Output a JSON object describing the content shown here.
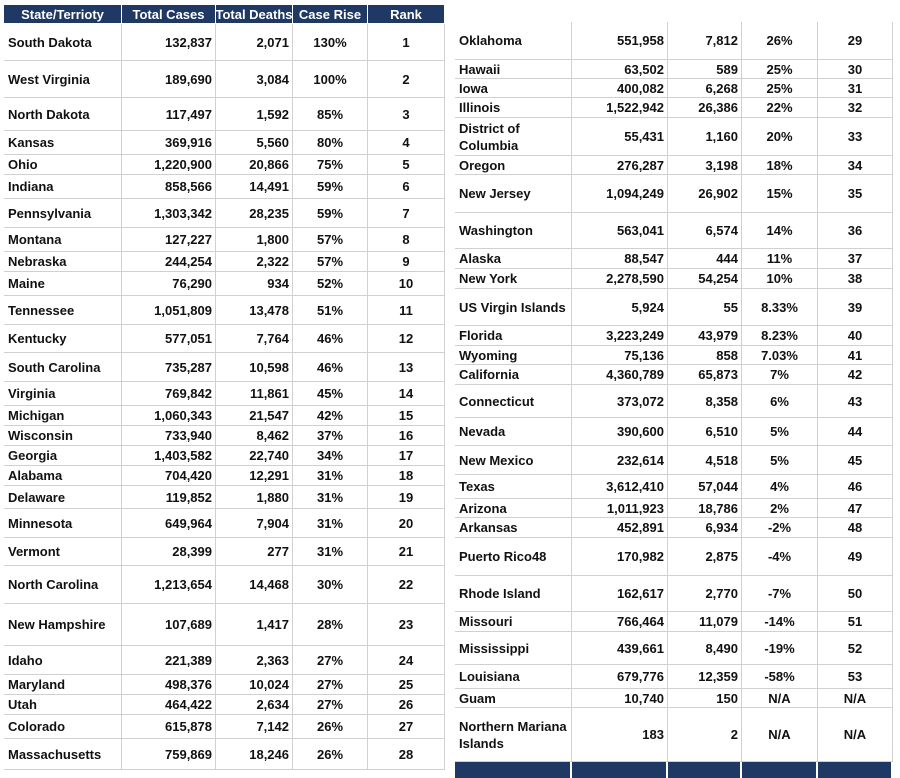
{
  "left_table": {
    "header": [
      "State/Terrioty",
      "Total Cases",
      "Total Deaths",
      "Case Rise",
      "Rank"
    ],
    "rows": [
      [
        "South Dakota",
        "132,837",
        "2,071",
        "130%",
        "1"
      ],
      [
        "West Virginia",
        "189,690",
        "3,084",
        "100%",
        "2"
      ],
      [
        "North Dakota",
        "117,497",
        "1,592",
        "85%",
        "3"
      ],
      [
        "Kansas",
        "369,916",
        "5,560",
        "80%",
        "4"
      ],
      [
        "Ohio",
        "1,220,900",
        "20,866",
        "75%",
        "5"
      ],
      [
        "Indiana",
        "858,566",
        "14,491",
        "59%",
        "6"
      ],
      [
        "Pennsylvania",
        "1,303,342",
        "28,235",
        "59%",
        "7"
      ],
      [
        "Montana",
        "127,227",
        "1,800",
        "57%",
        "8"
      ],
      [
        "Nebraska",
        "244,254",
        "2,322",
        "57%",
        "9"
      ],
      [
        "Maine",
        "76,290",
        "934",
        "52%",
        "10"
      ],
      [
        "Tennessee",
        "1,051,809",
        "13,478",
        "51%",
        "11"
      ],
      [
        "Kentucky",
        "577,051",
        "7,764",
        "46%",
        "12"
      ],
      [
        "South Carolina",
        "735,287",
        "10,598",
        "46%",
        "13"
      ],
      [
        "Virginia",
        "769,842",
        "11,861",
        "45%",
        "14"
      ],
      [
        "Michigan",
        "1,060,343",
        "21,547",
        "42%",
        "15"
      ],
      [
        "Wisconsin",
        "733,940",
        "8,462",
        "37%",
        "16"
      ],
      [
        "Georgia",
        "1,403,582",
        "22,740",
        "34%",
        "17"
      ],
      [
        "Alabama",
        "704,420",
        "12,291",
        "31%",
        "18"
      ],
      [
        "Delaware",
        "119,852",
        "1,880",
        "31%",
        "19"
      ],
      [
        "Minnesota",
        "649,964",
        "7,904",
        "31%",
        "20"
      ],
      [
        "Vermont",
        "28,399",
        "277",
        "31%",
        "21"
      ],
      [
        "North Carolina",
        "1,213,654",
        "14,468",
        "30%",
        "22"
      ],
      [
        "New Hampshire",
        "107,689",
        "1,417",
        "28%",
        "23"
      ],
      [
        "Idaho",
        "221,389",
        "2,363",
        "27%",
        "24"
      ],
      [
        "Maryland",
        "498,376",
        "10,024",
        "27%",
        "25"
      ],
      [
        "Utah",
        "464,422",
        "2,634",
        "27%",
        "26"
      ],
      [
        "Colorado",
        "615,878",
        "7,142",
        "26%",
        "27"
      ],
      [
        "Massachusetts",
        "759,869",
        "18,246",
        "26%",
        "28"
      ]
    ]
  },
  "right_table": {
    "rows": [
      [
        "Oklahoma",
        "551,958",
        "7,812",
        "26%",
        "29"
      ],
      [
        "Hawaii",
        "63,502",
        "589",
        "25%",
        "30"
      ],
      [
        "Iowa",
        "400,082",
        "6,268",
        "25%",
        "31"
      ],
      [
        "Illinois",
        "1,522,942",
        "26,386",
        "22%",
        "32"
      ],
      [
        "District of Columbia",
        "55,431",
        "1,160",
        "20%",
        "33"
      ],
      [
        "Oregon",
        "276,287",
        "3,198",
        "18%",
        "34"
      ],
      [
        "New Jersey",
        "1,094,249",
        "26,902",
        "15%",
        "35"
      ],
      [
        "Washington",
        "563,041",
        "6,574",
        "14%",
        "36"
      ],
      [
        "Alaska",
        "88,547",
        "444",
        "11%",
        "37"
      ],
      [
        "New York",
        "2,278,590",
        "54,254",
        "10%",
        "38"
      ],
      [
        "US Virgin Islands",
        "5,924",
        "55",
        "8.33%",
        "39"
      ],
      [
        "Florida",
        "3,223,249",
        "43,979",
        "8.23%",
        "40"
      ],
      [
        "Wyoming",
        "75,136",
        "858",
        "7.03%",
        "41"
      ],
      [
        "California",
        "4,360,789",
        "65,873",
        "7%",
        "42"
      ],
      [
        "Connecticut",
        "373,072",
        "8,358",
        "6%",
        "43"
      ],
      [
        "Nevada",
        "390,600",
        "6,510",
        "5%",
        "44"
      ],
      [
        "New Mexico",
        "232,614",
        "4,518",
        "5%",
        "45"
      ],
      [
        "Texas",
        "3,612,410",
        "57,044",
        "4%",
        "46"
      ],
      [
        "Arizona",
        "1,011,923",
        "18,786",
        "2%",
        "47"
      ],
      [
        "Arkansas",
        "452,891",
        "6,934",
        "-2%",
        "48"
      ],
      [
        "Puerto Rico48",
        "170,982",
        "2,875",
        "-4%",
        "49"
      ],
      [
        "Rhode Island",
        "162,617",
        "2,770",
        "-7%",
        "50"
      ],
      [
        "Missouri",
        "766,464",
        "11,079",
        "-14%",
        "51"
      ],
      [
        "Mississippi",
        "439,661",
        "8,490",
        "-19%",
        "52"
      ],
      [
        "Louisiana",
        "679,776",
        "12,359",
        "-58%",
        "53"
      ],
      [
        "Guam",
        "10,740",
        "150",
        "N/A",
        "N/A"
      ],
      [
        "Northern Mariana Islands",
        "183",
        "2",
        "N/A",
        "N/A"
      ]
    ]
  }
}
